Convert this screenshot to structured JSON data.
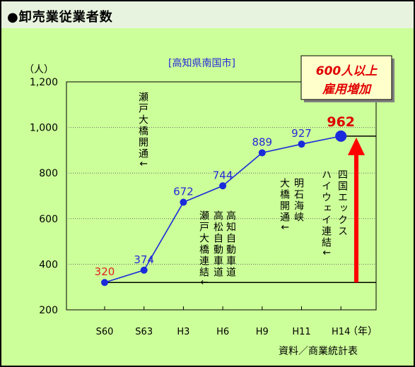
{
  "page_title": "●卸売業従業者数",
  "source": "資料／商業統計表",
  "chart_data": {
    "type": "line",
    "title": "[高知県南国市]",
    "ylabel": "（人）",
    "xlabel": "（年）",
    "categories": [
      "S60",
      "S63",
      "H3",
      "H6",
      "H9",
      "H11",
      "H14"
    ],
    "values": [
      320,
      374,
      672,
      744,
      889,
      927,
      962
    ],
    "yticks": [
      "1,200",
      "1,000",
      "800",
      "600",
      "400",
      "200"
    ],
    "ytick_values": [
      1200,
      1000,
      800,
      600,
      400,
      200
    ],
    "ylim": [
      200,
      1200
    ],
    "grid": true,
    "reference_lines": [
      962,
      320
    ],
    "callout": {
      "line1": "600人以上",
      "line2": "雇用増加"
    },
    "colors": {
      "line": "#1a2bdb",
      "label": "#2828d8",
      "first_label": "#e02020",
      "last_label": "#e00000",
      "arrow": "#ff0000",
      "callout_text": "#e00000"
    },
    "annotations": [
      {
        "text": "瀬戸大橋開通↓"
      },
      {
        "text": "高知自動車道"
      },
      {
        "text": "高松自動車道"
      },
      {
        "text": "瀬戸大橋連結↓"
      },
      {
        "text": "明石海峡"
      },
      {
        "text": "大橋開通↓"
      },
      {
        "text": "四国エックス"
      },
      {
        "text": "ハイウェイ連結↓"
      }
    ]
  }
}
